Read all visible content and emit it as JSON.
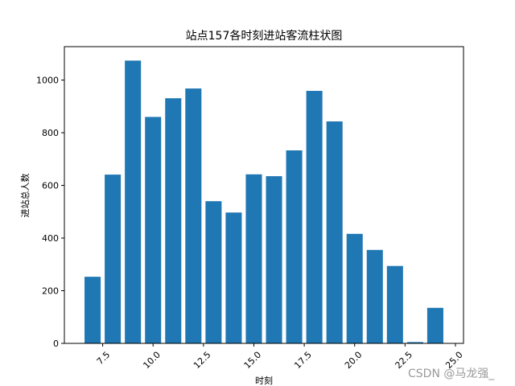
{
  "chart_data": {
    "type": "bar",
    "title": "站点157各时刻进站客流柱状图",
    "xlabel": "时刻",
    "ylabel": "进站总人数",
    "x": [
      7,
      8,
      9,
      10,
      11,
      12,
      13,
      14,
      15,
      16,
      17,
      18,
      19,
      20,
      21,
      22,
      23,
      24
    ],
    "values": [
      253,
      641,
      1074,
      860,
      931,
      968,
      540,
      497,
      642,
      635,
      733,
      959,
      843,
      416,
      355,
      294,
      5,
      135
    ],
    "xlim": [
      5.6,
      25.4
    ],
    "ylim": [
      0,
      1127
    ],
    "xticks": [
      7.5,
      10.0,
      12.5,
      15.0,
      17.5,
      20.0,
      22.5,
      25.0
    ],
    "xtick_labels": [
      "7.5",
      "10.0",
      "12.5",
      "15.0",
      "17.5",
      "20.0",
      "22.5",
      "25.0"
    ],
    "yticks": [
      0,
      200,
      400,
      600,
      800,
      1000
    ],
    "ytick_labels": [
      "0",
      "200",
      "400",
      "600",
      "800",
      "1000"
    ],
    "bar_color": "#1f77b4",
    "grid": false,
    "legend": "none"
  },
  "watermark": "CSDN @马龙强_"
}
